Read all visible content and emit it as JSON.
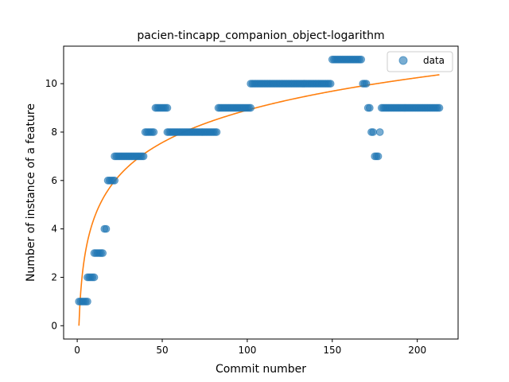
{
  "chart_data": {
    "type": "scatter",
    "title": "pacien-tincapp_companion_object-logarithm",
    "xlabel": "Commit number",
    "ylabel": "Number of instance of a feature",
    "xlim": [
      -8,
      224
    ],
    "ylim": [
      -0.55,
      11.55
    ],
    "xticks": [
      0,
      50,
      100,
      150,
      200
    ],
    "yticks": [
      0,
      2,
      4,
      6,
      8,
      10
    ],
    "grid": false,
    "legend": {
      "position": "top-right",
      "entries": [
        "data"
      ]
    },
    "colors": {
      "data": "#1f77b4",
      "fit": "#ff7f0e"
    },
    "series": [
      {
        "name": "data",
        "kind": "scatter",
        "points": [
          [
            1,
            1
          ],
          [
            2,
            1
          ],
          [
            3,
            1
          ],
          [
            4,
            1
          ],
          [
            5,
            1
          ],
          [
            6,
            1
          ],
          [
            6,
            2
          ],
          [
            7,
            2
          ],
          [
            8,
            2
          ],
          [
            9,
            2
          ],
          [
            10,
            2
          ],
          [
            10,
            3
          ],
          [
            11,
            3
          ],
          [
            12,
            3
          ],
          [
            13,
            3
          ],
          [
            14,
            3
          ],
          [
            15,
            3
          ],
          [
            16,
            4
          ],
          [
            17,
            4
          ],
          [
            18,
            6
          ],
          [
            19,
            6
          ],
          [
            20,
            6
          ],
          [
            21,
            6
          ],
          [
            22,
            6
          ],
          [
            22,
            7
          ],
          [
            23,
            7
          ],
          [
            24,
            7
          ],
          [
            25,
            7
          ],
          [
            26,
            7
          ],
          [
            27,
            7
          ],
          [
            28,
            7
          ],
          [
            29,
            7
          ],
          [
            30,
            7
          ],
          [
            31,
            7
          ],
          [
            32,
            7
          ],
          [
            33,
            7
          ],
          [
            34,
            7
          ],
          [
            35,
            7
          ],
          [
            36,
            7
          ],
          [
            37,
            7
          ],
          [
            38,
            7
          ],
          [
            39,
            7
          ],
          [
            40,
            8
          ],
          [
            41,
            8
          ],
          [
            42,
            8
          ],
          [
            43,
            8
          ],
          [
            44,
            8
          ],
          [
            45,
            8
          ],
          [
            46,
            9
          ],
          [
            47,
            9
          ],
          [
            48,
            9
          ],
          [
            49,
            9
          ],
          [
            50,
            9
          ],
          [
            51,
            9
          ],
          [
            52,
            9
          ],
          [
            53,
            9
          ],
          [
            53,
            8
          ],
          [
            54,
            8
          ],
          [
            55,
            8
          ],
          [
            56,
            8
          ],
          [
            57,
            8
          ],
          [
            58,
            8
          ],
          [
            59,
            8
          ],
          [
            60,
            8
          ],
          [
            61,
            8
          ],
          [
            62,
            8
          ],
          [
            63,
            8
          ],
          [
            64,
            8
          ],
          [
            65,
            8
          ],
          [
            66,
            8
          ],
          [
            67,
            8
          ],
          [
            68,
            8
          ],
          [
            69,
            8
          ],
          [
            70,
            8
          ],
          [
            71,
            8
          ],
          [
            72,
            8
          ],
          [
            73,
            8
          ],
          [
            74,
            8
          ],
          [
            75,
            8
          ],
          [
            76,
            8
          ],
          [
            77,
            8
          ],
          [
            78,
            8
          ],
          [
            79,
            8
          ],
          [
            80,
            8
          ],
          [
            81,
            8
          ],
          [
            82,
            8
          ],
          [
            83,
            9
          ],
          [
            84,
            9
          ],
          [
            85,
            9
          ],
          [
            86,
            9
          ],
          [
            87,
            9
          ],
          [
            88,
            9
          ],
          [
            89,
            9
          ],
          [
            90,
            9
          ],
          [
            91,
            9
          ],
          [
            92,
            9
          ],
          [
            93,
            9
          ],
          [
            94,
            9
          ],
          [
            95,
            9
          ],
          [
            96,
            9
          ],
          [
            97,
            9
          ],
          [
            98,
            9
          ],
          [
            99,
            9
          ],
          [
            100,
            9
          ],
          [
            101,
            9
          ],
          [
            102,
            9
          ],
          [
            102,
            10
          ],
          [
            103,
            10
          ],
          [
            104,
            10
          ],
          [
            105,
            10
          ],
          [
            106,
            10
          ],
          [
            107,
            10
          ],
          [
            108,
            10
          ],
          [
            109,
            10
          ],
          [
            110,
            10
          ],
          [
            111,
            10
          ],
          [
            112,
            10
          ],
          [
            113,
            10
          ],
          [
            114,
            10
          ],
          [
            115,
            10
          ],
          [
            116,
            10
          ],
          [
            117,
            10
          ],
          [
            118,
            10
          ],
          [
            119,
            10
          ],
          [
            120,
            10
          ],
          [
            121,
            10
          ],
          [
            122,
            10
          ],
          [
            123,
            10
          ],
          [
            124,
            10
          ],
          [
            125,
            10
          ],
          [
            126,
            10
          ],
          [
            127,
            10
          ],
          [
            128,
            10
          ],
          [
            129,
            10
          ],
          [
            130,
            10
          ],
          [
            131,
            10
          ],
          [
            132,
            10
          ],
          [
            133,
            10
          ],
          [
            134,
            10
          ],
          [
            135,
            10
          ],
          [
            136,
            10
          ],
          [
            137,
            10
          ],
          [
            138,
            10
          ],
          [
            139,
            10
          ],
          [
            140,
            10
          ],
          [
            141,
            10
          ],
          [
            142,
            10
          ],
          [
            143,
            10
          ],
          [
            144,
            10
          ],
          [
            145,
            10
          ],
          [
            146,
            10
          ],
          [
            147,
            10
          ],
          [
            148,
            10
          ],
          [
            149,
            10
          ],
          [
            150,
            11
          ],
          [
            151,
            11
          ],
          [
            152,
            11
          ],
          [
            153,
            11
          ],
          [
            154,
            11
          ],
          [
            155,
            11
          ],
          [
            156,
            11
          ],
          [
            157,
            11
          ],
          [
            158,
            11
          ],
          [
            159,
            11
          ],
          [
            160,
            11
          ],
          [
            161,
            11
          ],
          [
            162,
            11
          ],
          [
            163,
            11
          ],
          [
            164,
            11
          ],
          [
            165,
            11
          ],
          [
            166,
            11
          ],
          [
            167,
            11
          ],
          [
            168,
            10
          ],
          [
            169,
            10
          ],
          [
            170,
            10
          ],
          [
            171,
            9
          ],
          [
            172,
            9
          ],
          [
            173,
            8
          ],
          [
            174,
            8
          ],
          [
            175,
            7
          ],
          [
            176,
            7
          ],
          [
            177,
            7
          ],
          [
            178,
            8
          ],
          [
            179,
            9
          ],
          [
            180,
            9
          ],
          [
            181,
            9
          ],
          [
            182,
            9
          ],
          [
            183,
            9
          ],
          [
            184,
            9
          ],
          [
            185,
            9
          ],
          [
            186,
            9
          ],
          [
            187,
            9
          ],
          [
            188,
            9
          ],
          [
            189,
            9
          ],
          [
            190,
            9
          ],
          [
            191,
            9
          ],
          [
            192,
            9
          ],
          [
            193,
            9
          ],
          [
            194,
            9
          ],
          [
            195,
            9
          ],
          [
            196,
            9
          ],
          [
            197,
            9
          ],
          [
            198,
            9
          ],
          [
            199,
            9
          ],
          [
            200,
            9
          ],
          [
            201,
            9
          ],
          [
            202,
            9
          ],
          [
            203,
            9
          ],
          [
            204,
            9
          ],
          [
            205,
            9
          ],
          [
            206,
            9
          ],
          [
            207,
            9
          ],
          [
            208,
            9
          ],
          [
            209,
            9
          ],
          [
            210,
            9
          ],
          [
            211,
            9
          ],
          [
            212,
            9
          ],
          [
            213,
            9
          ]
        ]
      },
      {
        "kind": "line",
        "model": "logarithmic",
        "x_range": [
          1,
          213
        ],
        "coefficients": {
          "a": 1.934,
          "b": 0.0
        }
      }
    ]
  }
}
